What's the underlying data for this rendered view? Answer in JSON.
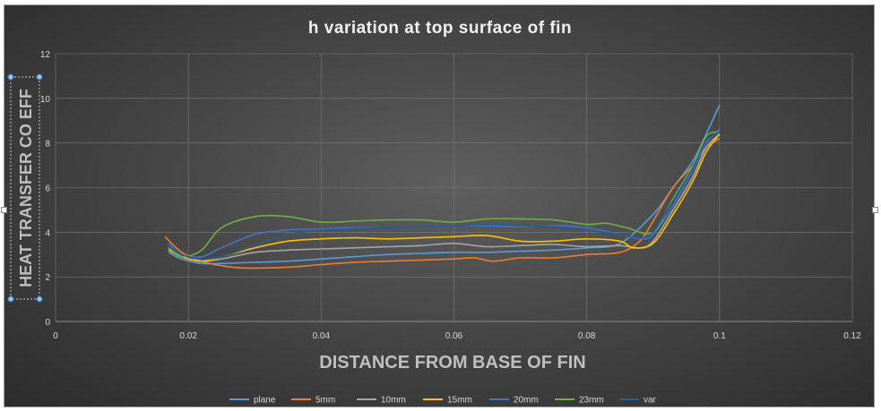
{
  "chart_data": {
    "type": "line",
    "title": "h variation at top surface of fin",
    "xlabel": "DISTANCE FROM BASE OF FIN",
    "ylabel": "HEAT TRANSFER CO EFF",
    "xlim": [
      0,
      0.12
    ],
    "ylim": [
      0,
      12
    ],
    "xticks": [
      "0",
      "0.02",
      "0.04",
      "0.06",
      "0.08",
      "0.1",
      "0.12"
    ],
    "yticks": [
      "0",
      "2",
      "4",
      "6",
      "8",
      "10",
      "12"
    ],
    "grid": true,
    "legend_position": "bottom",
    "series": [
      {
        "name": "plane",
        "color": "#5b9bd5",
        "points": [
          [
            0.017,
            3.1
          ],
          [
            0.019,
            2.8
          ],
          [
            0.022,
            2.6
          ],
          [
            0.025,
            2.6
          ],
          [
            0.03,
            2.65
          ],
          [
            0.035,
            2.7
          ],
          [
            0.04,
            2.8
          ],
          [
            0.045,
            2.9
          ],
          [
            0.05,
            3.0
          ],
          [
            0.055,
            3.05
          ],
          [
            0.06,
            3.1
          ],
          [
            0.065,
            3.1
          ],
          [
            0.07,
            3.15
          ],
          [
            0.075,
            3.2
          ],
          [
            0.08,
            3.3
          ],
          [
            0.085,
            3.5
          ],
          [
            0.09,
            4.8
          ],
          [
            0.093,
            6.0
          ],
          [
            0.096,
            7.2
          ],
          [
            0.098,
            8.4
          ],
          [
            0.1,
            9.7
          ]
        ]
      },
      {
        "name": "5mm",
        "color": "#ed7d31",
        "points": [
          [
            0.0165,
            3.8
          ],
          [
            0.019,
            3.1
          ],
          [
            0.022,
            2.7
          ],
          [
            0.025,
            2.5
          ],
          [
            0.028,
            2.4
          ],
          [
            0.032,
            2.4
          ],
          [
            0.036,
            2.45
          ],
          [
            0.04,
            2.55
          ],
          [
            0.045,
            2.65
          ],
          [
            0.05,
            2.7
          ],
          [
            0.055,
            2.75
          ],
          [
            0.06,
            2.8
          ],
          [
            0.063,
            2.85
          ],
          [
            0.066,
            2.7
          ],
          [
            0.07,
            2.85
          ],
          [
            0.075,
            2.85
          ],
          [
            0.08,
            3.0
          ],
          [
            0.085,
            3.1
          ],
          [
            0.088,
            3.6
          ],
          [
            0.09,
            4.5
          ],
          [
            0.093,
            6.0
          ],
          [
            0.096,
            7.0
          ],
          [
            0.098,
            7.8
          ],
          [
            0.1,
            8.2
          ]
        ]
      },
      {
        "name": "10mm",
        "color": "#a5a5a5",
        "points": [
          [
            0.017,
            3.3
          ],
          [
            0.019,
            2.9
          ],
          [
            0.022,
            2.7
          ],
          [
            0.025,
            2.8
          ],
          [
            0.03,
            3.1
          ],
          [
            0.035,
            3.2
          ],
          [
            0.04,
            3.25
          ],
          [
            0.045,
            3.3
          ],
          [
            0.05,
            3.35
          ],
          [
            0.055,
            3.4
          ],
          [
            0.06,
            3.5
          ],
          [
            0.065,
            3.35
          ],
          [
            0.07,
            3.4
          ],
          [
            0.075,
            3.45
          ],
          [
            0.08,
            3.35
          ],
          [
            0.085,
            3.4
          ],
          [
            0.088,
            3.3
          ],
          [
            0.09,
            3.6
          ],
          [
            0.093,
            5.0
          ],
          [
            0.096,
            6.5
          ],
          [
            0.098,
            7.8
          ],
          [
            0.1,
            8.4
          ]
        ]
      },
      {
        "name": "15mm",
        "color": "#ffc000",
        "points": [
          [
            0.017,
            3.2
          ],
          [
            0.019,
            2.9
          ],
          [
            0.022,
            2.7
          ],
          [
            0.025,
            2.9
          ],
          [
            0.03,
            3.3
          ],
          [
            0.035,
            3.6
          ],
          [
            0.04,
            3.7
          ],
          [
            0.045,
            3.75
          ],
          [
            0.05,
            3.7
          ],
          [
            0.055,
            3.75
          ],
          [
            0.06,
            3.8
          ],
          [
            0.065,
            3.85
          ],
          [
            0.07,
            3.6
          ],
          [
            0.075,
            3.6
          ],
          [
            0.08,
            3.7
          ],
          [
            0.085,
            3.6
          ],
          [
            0.087,
            3.3
          ],
          [
            0.09,
            3.5
          ],
          [
            0.093,
            4.8
          ],
          [
            0.096,
            6.3
          ],
          [
            0.098,
            7.6
          ],
          [
            0.1,
            8.4
          ]
        ]
      },
      {
        "name": "20mm",
        "color": "#4472c4",
        "points": [
          [
            0.017,
            3.5
          ],
          [
            0.019,
            3.0
          ],
          [
            0.022,
            2.9
          ],
          [
            0.025,
            3.3
          ],
          [
            0.03,
            3.9
          ],
          [
            0.035,
            4.1
          ],
          [
            0.04,
            4.15
          ],
          [
            0.045,
            4.2
          ],
          [
            0.05,
            4.2
          ],
          [
            0.055,
            4.25
          ],
          [
            0.06,
            4.3
          ],
          [
            0.065,
            4.3
          ],
          [
            0.07,
            4.25
          ],
          [
            0.075,
            4.3
          ],
          [
            0.08,
            4.2
          ],
          [
            0.085,
            3.9
          ],
          [
            0.088,
            3.7
          ],
          [
            0.09,
            3.9
          ],
          [
            0.093,
            5.2
          ],
          [
            0.096,
            6.8
          ],
          [
            0.098,
            8.0
          ],
          [
            0.1,
            8.6
          ]
        ]
      },
      {
        "name": "23mm",
        "color": "#70ad47",
        "points": [
          [
            0.017,
            3.3
          ],
          [
            0.019,
            2.9
          ],
          [
            0.022,
            3.2
          ],
          [
            0.025,
            4.2
          ],
          [
            0.03,
            4.7
          ],
          [
            0.035,
            4.7
          ],
          [
            0.04,
            4.45
          ],
          [
            0.045,
            4.5
          ],
          [
            0.05,
            4.55
          ],
          [
            0.055,
            4.55
          ],
          [
            0.06,
            4.45
          ],
          [
            0.065,
            4.6
          ],
          [
            0.07,
            4.6
          ],
          [
            0.075,
            4.55
          ],
          [
            0.08,
            4.35
          ],
          [
            0.083,
            4.4
          ],
          [
            0.086,
            4.2
          ],
          [
            0.09,
            4.0
          ],
          [
            0.093,
            5.5
          ],
          [
            0.096,
            7.0
          ],
          [
            0.098,
            8.3
          ],
          [
            0.1,
            8.5
          ]
        ]
      },
      {
        "name": "var",
        "color": "#255e91",
        "points": [
          [
            0.017,
            3.4
          ],
          [
            0.019,
            3.0
          ],
          [
            0.022,
            2.8
          ],
          [
            0.025,
            2.9
          ],
          [
            0.03,
            3.4
          ],
          [
            0.035,
            3.9
          ],
          [
            0.04,
            4.1
          ],
          [
            0.045,
            4.15
          ],
          [
            0.05,
            4.2
          ],
          [
            0.055,
            4.25
          ],
          [
            0.06,
            4.3
          ],
          [
            0.065,
            4.35
          ],
          [
            0.07,
            4.3
          ],
          [
            0.075,
            4.25
          ],
          [
            0.08,
            4.1
          ],
          [
            0.085,
            3.9
          ],
          [
            0.088,
            3.75
          ],
          [
            0.09,
            4.0
          ],
          [
            0.093,
            5.4
          ],
          [
            0.096,
            6.9
          ],
          [
            0.098,
            8.1
          ],
          [
            0.1,
            8.5
          ]
        ]
      }
    ]
  }
}
